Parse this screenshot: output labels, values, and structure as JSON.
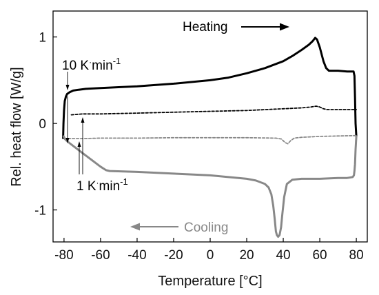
{
  "chart_data": {
    "type": "line",
    "xlabel": "Temperature [°C]",
    "ylabel": "Rel. heat flow [W/g]",
    "xlim": [
      -86,
      86
    ],
    "ylim": [
      -1.37,
      1.3
    ],
    "x_ticks": [
      -80,
      -60,
      -40,
      -20,
      0,
      20,
      40,
      60,
      80
    ],
    "x_tick_labels": [
      "-80",
      "-60",
      "-40",
      "-20",
      "0",
      "20",
      "40",
      "60",
      "80"
    ],
    "y_ticks": [
      -1,
      0,
      1
    ],
    "y_tick_labels": [
      "-1",
      "0",
      "1"
    ],
    "grid": false,
    "series": [
      {
        "color": "#000000",
        "style": "solid",
        "x": [
          -80.5,
          -80.3,
          -80.0,
          -79.6,
          -79.0,
          -78.3,
          -77.0,
          -75.0,
          -72.0,
          -68.0,
          -60.0,
          -40.0,
          -20.0,
          0.0,
          10.0,
          20.0,
          30.0,
          40.0,
          45.0,
          50.0,
          54.0,
          56.0,
          57.5,
          58.5,
          60.0,
          62.0,
          63.5,
          65.0,
          70.0,
          75.0,
          78.5,
          79.0,
          79.3,
          79.6,
          80.0
        ],
        "y": [
          -0.17,
          0.0,
          0.15,
          0.26,
          0.31,
          0.34,
          0.36,
          0.38,
          0.39,
          0.4,
          0.41,
          0.43,
          0.46,
          0.5,
          0.53,
          0.58,
          0.64,
          0.72,
          0.78,
          0.85,
          0.91,
          0.95,
          0.99,
          0.97,
          0.88,
          0.72,
          0.64,
          0.61,
          0.61,
          0.6,
          0.6,
          0.55,
          0.3,
          0.0,
          -0.15
        ]
      },
      {
        "color": "#000000",
        "style": "dashed",
        "x": [
          -76.0,
          -70.0,
          -60.0,
          -40.0,
          -20.0,
          0.0,
          20.0,
          40.0,
          50.0,
          55.0,
          58.0,
          60.0,
          62.0,
          64.0,
          70.0,
          80.0
        ],
        "y": [
          0.1,
          0.11,
          0.11,
          0.12,
          0.13,
          0.14,
          0.15,
          0.17,
          0.18,
          0.19,
          0.2,
          0.19,
          0.17,
          0.16,
          0.16,
          0.16
        ]
      },
      {
        "color": "#888888",
        "style": "dashed",
        "x": [
          -80.0,
          -78.5,
          -76.0,
          -70.0,
          -60.0,
          -40.0,
          -20.0,
          0.0,
          20.0,
          36.0,
          39.0,
          41.0,
          42.5,
          44.0,
          46.0,
          50.0,
          60.0,
          80.0
        ],
        "y": [
          -0.17,
          -0.175,
          -0.175,
          -0.175,
          -0.17,
          -0.17,
          -0.165,
          -0.165,
          -0.165,
          -0.17,
          -0.18,
          -0.22,
          -0.235,
          -0.2,
          -0.17,
          -0.16,
          -0.15,
          -0.14
        ]
      },
      {
        "color": "#888888",
        "style": "solid",
        "x": [
          80.0,
          79.6,
          79.3,
          79.0,
          78.7,
          78.0,
          75.0,
          70.0,
          60.0,
          50.0,
          45.0,
          42.0,
          40.5,
          39.5,
          38.8,
          38.0,
          37.2,
          36.5,
          36.0,
          35.3,
          34.5,
          33.5,
          32.0,
          30.0,
          25.0,
          20.0,
          10.0,
          0.0,
          -20.0,
          -40.0,
          -55.0,
          -57.0,
          -60.0,
          -65.0,
          -70.0,
          -75.0,
          -78.0,
          -79.5,
          -80.2
        ],
        "y": [
          -0.15,
          -0.3,
          -0.47,
          -0.55,
          -0.6,
          -0.62,
          -0.63,
          -0.63,
          -0.64,
          -0.64,
          -0.65,
          -0.7,
          -0.85,
          -1.05,
          -1.2,
          -1.29,
          -1.31,
          -1.29,
          -1.25,
          -1.1,
          -0.95,
          -0.82,
          -0.74,
          -0.7,
          -0.66,
          -0.64,
          -0.62,
          -0.6,
          -0.58,
          -0.56,
          -0.55,
          -0.54,
          -0.5,
          -0.42,
          -0.34,
          -0.26,
          -0.21,
          -0.18,
          -0.15
        ]
      }
    ],
    "annotations": {
      "heating_label": "Heating",
      "cooling_label": "Cooling",
      "rate_high_prefix": "10 K",
      "rate_high_superscript": "·",
      "rate_high_suffix": "min",
      "rate_high_exponent": "-1",
      "rate_low_prefix": "1 K",
      "rate_low_superscript": "·",
      "rate_low_suffix": "min",
      "rate_low_exponent": "-1"
    }
  }
}
